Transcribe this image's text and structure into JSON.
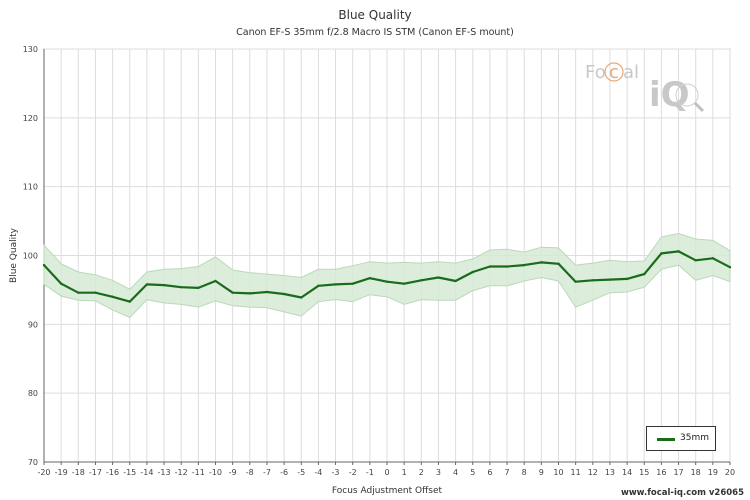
{
  "header": {
    "title": "Blue Quality",
    "subtitle": "Canon EF-S 35mm f/2.8 Macro IS STM (Canon EF-S mount)"
  },
  "logo": {
    "text_fo": "Fo",
    "text_c": "c",
    "text_al": "al",
    "text_iq": "iQ"
  },
  "footer": {
    "text": "www.focal-iq.com  v26065"
  },
  "colors": {
    "series": "#1a6b1a",
    "band": "#d6ead6",
    "band_edge": "#b9d9b9",
    "grid": "#dddddd"
  },
  "chart_data": {
    "type": "line",
    "title": "Blue Quality",
    "subtitle": "Canon EF-S 35mm f/2.8 Macro IS STM (Canon EF-S mount)",
    "xlabel": "Focus Adjustment Offset",
    "ylabel": "Blue Quality",
    "xlim": [
      -20,
      20
    ],
    "ylim": [
      70,
      130
    ],
    "xticks": [
      -20,
      -19,
      -18,
      -17,
      -16,
      -15,
      -14,
      -13,
      -12,
      -11,
      -10,
      -9,
      -8,
      -7,
      -6,
      -5,
      -4,
      -3,
      -2,
      -1,
      0,
      1,
      2,
      3,
      4,
      5,
      6,
      7,
      8,
      9,
      10,
      11,
      12,
      13,
      14,
      15,
      16,
      17,
      18,
      19,
      20
    ],
    "yticks": [
      70,
      80,
      90,
      100,
      110,
      120,
      130
    ],
    "grid": true,
    "legend_position": "bottom-right",
    "series": [
      {
        "name": "35mm",
        "x": [
          -20,
          -19,
          -18,
          -17,
          -16,
          -15,
          -14,
          -13,
          -12,
          -11,
          -10,
          -9,
          -8,
          -7,
          -6,
          -5,
          -4,
          -3,
          -2,
          -1,
          0,
          1,
          2,
          3,
          4,
          5,
          6,
          7,
          8,
          9,
          10,
          11,
          12,
          13,
          14,
          15,
          16,
          17,
          18,
          19,
          20
        ],
        "values": [
          98.6,
          95.9,
          94.6,
          94.6,
          94.0,
          93.3,
          95.8,
          95.7,
          95.4,
          95.3,
          96.3,
          94.6,
          94.5,
          94.7,
          94.4,
          93.9,
          95.6,
          95.8,
          95.9,
          96.7,
          96.2,
          95.9,
          96.4,
          96.8,
          96.3,
          97.6,
          98.4,
          98.4,
          98.6,
          99.0,
          98.8,
          96.2,
          96.4,
          96.5,
          96.6,
          97.3,
          100.3,
          100.6,
          99.3,
          99.6,
          98.3
        ],
        "upper": [
          101.5,
          98.8,
          97.6,
          97.2,
          96.4,
          95.1,
          97.6,
          98.0,
          98.1,
          98.4,
          99.8,
          97.9,
          97.5,
          97.3,
          97.1,
          96.8,
          98.0,
          98.0,
          98.5,
          99.1,
          98.9,
          99.0,
          98.9,
          99.1,
          98.9,
          99.5,
          100.8,
          100.9,
          100.5,
          101.2,
          101.1,
          98.6,
          98.9,
          99.3,
          99.1,
          99.2,
          102.7,
          103.2,
          102.4,
          102.2,
          100.7
        ],
        "lower": [
          95.8,
          94.1,
          93.5,
          93.4,
          92.1,
          91.0,
          93.6,
          93.1,
          92.9,
          92.5,
          93.4,
          92.7,
          92.5,
          92.4,
          91.8,
          91.2,
          93.3,
          93.6,
          93.3,
          94.3,
          94.0,
          92.9,
          93.6,
          93.5,
          93.5,
          94.9,
          95.6,
          95.6,
          96.3,
          96.8,
          96.3,
          92.5,
          93.5,
          94.6,
          94.7,
          95.4,
          98.0,
          98.6,
          96.4,
          97.1,
          96.2
        ]
      }
    ]
  }
}
